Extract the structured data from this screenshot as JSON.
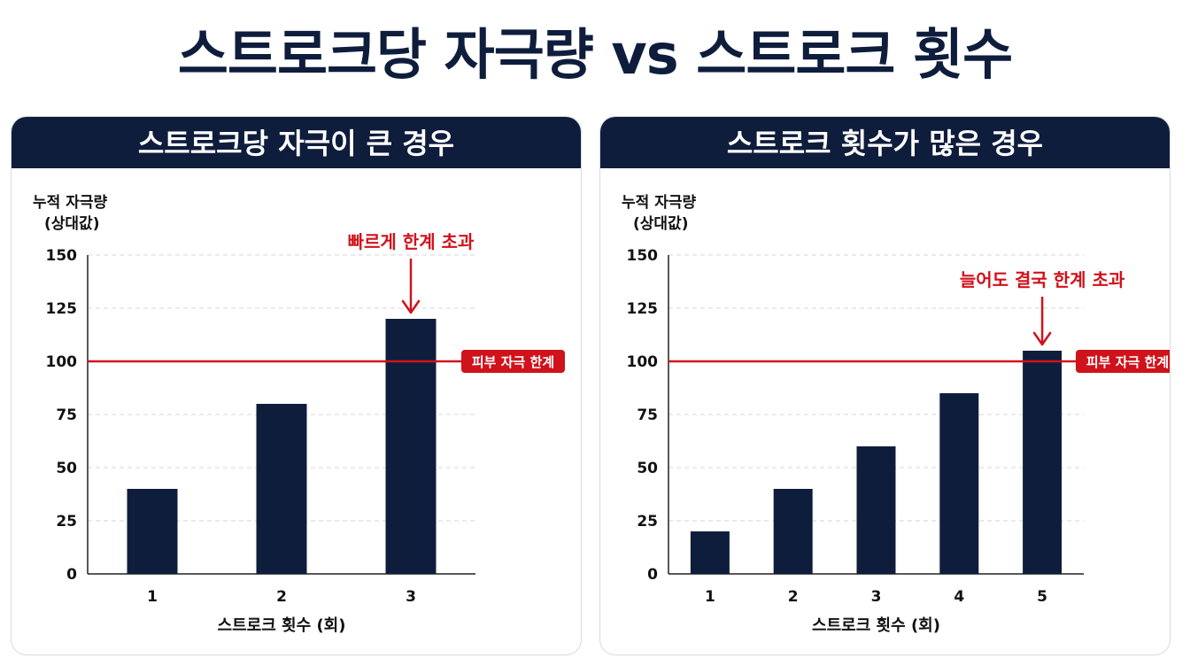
{
  "page_title": "스트로크당 자극량 vs 스트로크 횟수",
  "colors": {
    "navy": "#0f1d3d",
    "red": "#d0121b",
    "grid": "#d4d6db"
  },
  "chart_data": [
    {
      "type": "bar",
      "title": "스트로크당 자극이 큰 경우",
      "ylabel_lines": [
        "누적 자극량",
        "(상대값)"
      ],
      "xlabel": "스트로크 횟수 (회)",
      "categories": [
        "1",
        "2",
        "3"
      ],
      "values": [
        40,
        80,
        120
      ],
      "ylim": [
        0,
        150
      ],
      "yticks": [
        "0",
        "25",
        "50",
        "75",
        "100",
        "125",
        "150"
      ],
      "threshold": {
        "value": 100,
        "label": "피부 자극 한계"
      },
      "annotation": {
        "text": "빠르게 한계 초과",
        "target_index": 2
      },
      "grid": true
    },
    {
      "type": "bar",
      "title": "스트로크 횟수가 많은 경우",
      "ylabel_lines": [
        "누적 자극량",
        "(상대값)"
      ],
      "xlabel": "스트로크 횟수 (회)",
      "categories": [
        "1",
        "2",
        "3",
        "4",
        "5"
      ],
      "values": [
        20,
        40,
        60,
        85,
        105
      ],
      "ylim": [
        0,
        150
      ],
      "yticks": [
        "0",
        "25",
        "50",
        "75",
        "100",
        "125",
        "150"
      ],
      "threshold": {
        "value": 100,
        "label": "피부 자극 한계"
      },
      "annotation": {
        "text": "늘어도 결국 한계 초과",
        "target_index": 4
      },
      "grid": true
    }
  ]
}
